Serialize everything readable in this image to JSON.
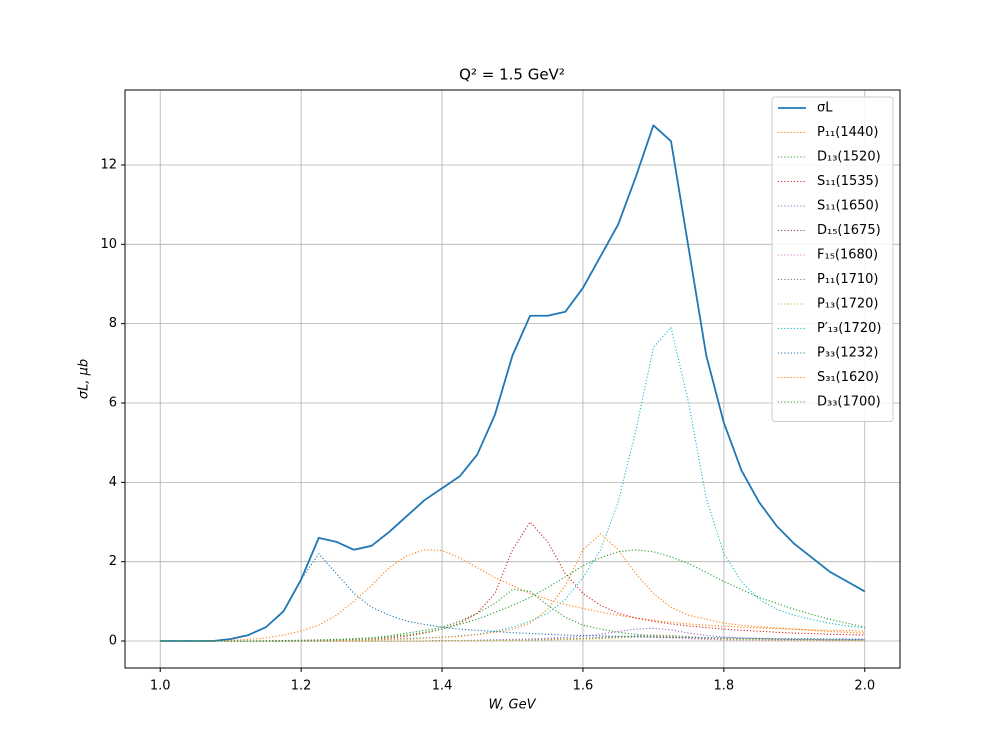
{
  "chart_data": {
    "type": "line",
    "title": "Q² = 1.5 GeV²",
    "xlabel": "W, GeV",
    "ylabel": "σL, μb",
    "x": [
      1.0,
      1.025,
      1.05,
      1.075,
      1.1,
      1.125,
      1.15,
      1.175,
      1.2,
      1.225,
      1.25,
      1.275,
      1.3,
      1.325,
      1.35,
      1.375,
      1.4,
      1.425,
      1.45,
      1.475,
      1.5,
      1.525,
      1.55,
      1.575,
      1.6,
      1.625,
      1.65,
      1.675,
      1.7,
      1.725,
      1.75,
      1.775,
      1.8,
      1.825,
      1.85,
      1.875,
      1.9,
      1.925,
      1.95,
      1.975,
      2.0
    ],
    "xlim": [
      0.95,
      2.05
    ],
    "xticks": [
      {
        "value": 1,
        "label": "1.0"
      },
      1.2,
      1.4,
      1.6,
      1.8,
      {
        "value": 2,
        "label": "2.0"
      }
    ],
    "ylim": [
      -0.68,
      13.89
    ],
    "yticks": [
      0,
      2,
      4,
      6,
      8,
      10,
      12
    ],
    "grid": true,
    "legend": "upper right",
    "series": [
      {
        "name": "σL",
        "color": "#1f77b4",
        "linestyle": "solid",
        "values": [
          0,
          0,
          0,
          0,
          0.05,
          0.15,
          0.35,
          0.75,
          1.55,
          2.6,
          2.5,
          2.3,
          2.4,
          2.75,
          3.15,
          3.55,
          3.85,
          4.15,
          4.7,
          5.7,
          7.2,
          8.2,
          8.2,
          8.3,
          8.9,
          9.7,
          10.5,
          11.7,
          13.0,
          12.6,
          9.9,
          7.2,
          5.5,
          4.3,
          3.5,
          2.9,
          2.45,
          2.1,
          1.75,
          1.5,
          1.25
        ]
      },
      {
        "name": "P₁₁(1440)",
        "color": "#ff7f0e",
        "linestyle": "dotted",
        "values": [
          0,
          0,
          0,
          0.01,
          0.02,
          0.04,
          0.08,
          0.15,
          0.25,
          0.4,
          0.65,
          1.0,
          1.4,
          1.85,
          2.15,
          2.3,
          2.28,
          2.1,
          1.85,
          1.6,
          1.4,
          1.2,
          1.05,
          0.92,
          0.82,
          0.73,
          0.65,
          0.58,
          0.52,
          0.47,
          0.43,
          0.4,
          0.37,
          0.35,
          0.33,
          0.31,
          0.3,
          0.28,
          0.27,
          0.26,
          0.25
        ]
      },
      {
        "name": "D₁₃(1520)",
        "color": "#2ca02c",
        "linestyle": "dotted",
        "values": [
          0,
          0,
          0,
          0,
          0,
          0,
          0.01,
          0.01,
          0.02,
          0.03,
          0.04,
          0.06,
          0.08,
          0.13,
          0.2,
          0.27,
          0.35,
          0.5,
          0.7,
          0.95,
          1.3,
          1.25,
          0.9,
          0.6,
          0.4,
          0.3,
          0.22,
          0.17,
          0.13,
          0.11,
          0.09,
          0.08,
          0.07,
          0.06,
          0.05,
          0.05,
          0.04,
          0.04,
          0.03,
          0.03,
          0.03
        ]
      },
      {
        "name": "S₁₁(1535)",
        "color": "#d62728",
        "linestyle": "dotted",
        "values": [
          0,
          0,
          0,
          0,
          0,
          0,
          0,
          0.01,
          0.01,
          0.02,
          0.03,
          0.04,
          0.05,
          0.08,
          0.12,
          0.2,
          0.3,
          0.45,
          0.7,
          1.2,
          2.3,
          3.0,
          2.5,
          1.7,
          1.2,
          0.9,
          0.7,
          0.58,
          0.5,
          0.43,
          0.38,
          0.34,
          0.3,
          0.27,
          0.25,
          0.22,
          0.2,
          0.19,
          0.17,
          0.16,
          0.15
        ]
      },
      {
        "name": "S₁₁(1650)",
        "color": "#9467bd",
        "linestyle": "dotted",
        "values": [
          0,
          0,
          0,
          0,
          0,
          0,
          0,
          0,
          0,
          0,
          0,
          0,
          0,
          0,
          0,
          0,
          0.01,
          0.01,
          0.02,
          0.03,
          0.04,
          0.05,
          0.07,
          0.09,
          0.12,
          0.17,
          0.24,
          0.3,
          0.32,
          0.28,
          0.2,
          0.14,
          0.1,
          0.08,
          0.06,
          0.05,
          0.04,
          0.04,
          0.03,
          0.03,
          0.03
        ]
      },
      {
        "name": "D₁₅(1675)",
        "color": "#8c564b",
        "linestyle": "dotted",
        "values": [
          0,
          0,
          0,
          0,
          0,
          0,
          0,
          0,
          0,
          0,
          0,
          0,
          0,
          0,
          0,
          0,
          0.01,
          0.01,
          0.01,
          0.02,
          0.02,
          0.03,
          0.04,
          0.05,
          0.07,
          0.09,
          0.11,
          0.12,
          0.11,
          0.09,
          0.07,
          0.05,
          0.04,
          0.03,
          0.03,
          0.02,
          0.02,
          0.02,
          0.01,
          0.01,
          0.01
        ]
      },
      {
        "name": "F₁₅(1680)",
        "color": "#e377c2",
        "linestyle": "dotted",
        "values": [
          0,
          0,
          0,
          0,
          0,
          0,
          0,
          0,
          0,
          0,
          0,
          0,
          0,
          0,
          0,
          0,
          0,
          0.01,
          0.01,
          0.01,
          0.02,
          0.02,
          0.03,
          0.04,
          0.05,
          0.07,
          0.09,
          0.1,
          0.09,
          0.08,
          0.06,
          0.04,
          0.03,
          0.03,
          0.02,
          0.02,
          0.02,
          0.01,
          0.01,
          0.01,
          0.01
        ]
      },
      {
        "name": "P₁₁(1710)",
        "color": "#7f7f7f",
        "linestyle": "dotted",
        "values": [
          0,
          0,
          0,
          0,
          0,
          0,
          0,
          0,
          0,
          0,
          0,
          0,
          0,
          0,
          0,
          0,
          0.01,
          0.01,
          0.01,
          0.02,
          0.02,
          0.03,
          0.04,
          0.05,
          0.06,
          0.08,
          0.1,
          0.13,
          0.15,
          0.14,
          0.11,
          0.08,
          0.06,
          0.05,
          0.04,
          0.03,
          0.03,
          0.02,
          0.02,
          0.02,
          0.02
        ]
      },
      {
        "name": "P₁₃(1720)",
        "color": "#bcbd22",
        "linestyle": "dotted",
        "values": [
          0,
          0,
          0,
          0,
          0,
          0,
          0,
          0,
          0,
          0,
          0,
          0,
          0,
          0,
          0,
          0,
          0,
          0.01,
          0.01,
          0.01,
          0.02,
          0.02,
          0.03,
          0.04,
          0.05,
          0.06,
          0.08,
          0.1,
          0.12,
          0.12,
          0.1,
          0.07,
          0.05,
          0.04,
          0.03,
          0.03,
          0.02,
          0.02,
          0.02,
          0.01,
          0.01
        ]
      },
      {
        "name": "P′₁₃(1720)",
        "color": "#17becf",
        "linestyle": "dotted",
        "values": [
          0,
          0,
          0,
          0,
          0,
          0,
          0,
          0,
          0.01,
          0.01,
          0.02,
          0.03,
          0.04,
          0.05,
          0.07,
          0.08,
          0.1,
          0.13,
          0.17,
          0.25,
          0.35,
          0.5,
          0.7,
          1.05,
          1.6,
          2.3,
          3.5,
          5.3,
          7.4,
          7.9,
          6.0,
          3.6,
          2.2,
          1.5,
          1.05,
          0.8,
          0.65,
          0.54,
          0.45,
          0.38,
          0.33
        ]
      },
      {
        "name": "P₃₃(1232)",
        "color": "#1f77b4",
        "linestyle": "dotted",
        "values": [
          0,
          0,
          0,
          0.01,
          0.05,
          0.15,
          0.35,
          0.75,
          1.55,
          2.2,
          1.7,
          1.2,
          0.85,
          0.65,
          0.5,
          0.42,
          0.35,
          0.3,
          0.27,
          0.24,
          0.21,
          0.19,
          0.17,
          0.15,
          0.14,
          0.13,
          0.12,
          0.11,
          0.1,
          0.09,
          0.09,
          0.08,
          0.08,
          0.07,
          0.07,
          0.06,
          0.06,
          0.06,
          0.05,
          0.05,
          0.05
        ]
      },
      {
        "name": "S₃₁(1620)",
        "color": "#ff7f0e",
        "linestyle": "dotted",
        "values": [
          0,
          0,
          0,
          0,
          0,
          0,
          0,
          0,
          0,
          0.01,
          0.01,
          0.02,
          0.03,
          0.04,
          0.05,
          0.07,
          0.09,
          0.12,
          0.16,
          0.22,
          0.3,
          0.45,
          0.8,
          1.4,
          2.3,
          2.7,
          2.3,
          1.7,
          1.2,
          0.85,
          0.65,
          0.55,
          0.45,
          0.4,
          0.36,
          0.33,
          0.3,
          0.27,
          0.24,
          0.22,
          0.2
        ]
      },
      {
        "name": "D₃₃(1700)",
        "color": "#2ca02c",
        "linestyle": "dotted",
        "values": [
          0,
          0,
          0,
          0,
          0,
          0,
          0,
          0,
          0.01,
          0.02,
          0.03,
          0.05,
          0.08,
          0.11,
          0.15,
          0.22,
          0.3,
          0.42,
          0.55,
          0.72,
          0.9,
          1.1,
          1.35,
          1.62,
          1.9,
          2.1,
          2.25,
          2.3,
          2.25,
          2.12,
          1.95,
          1.73,
          1.5,
          1.3,
          1.1,
          0.95,
          0.8,
          0.67,
          0.55,
          0.45,
          0.35
        ]
      }
    ]
  }
}
